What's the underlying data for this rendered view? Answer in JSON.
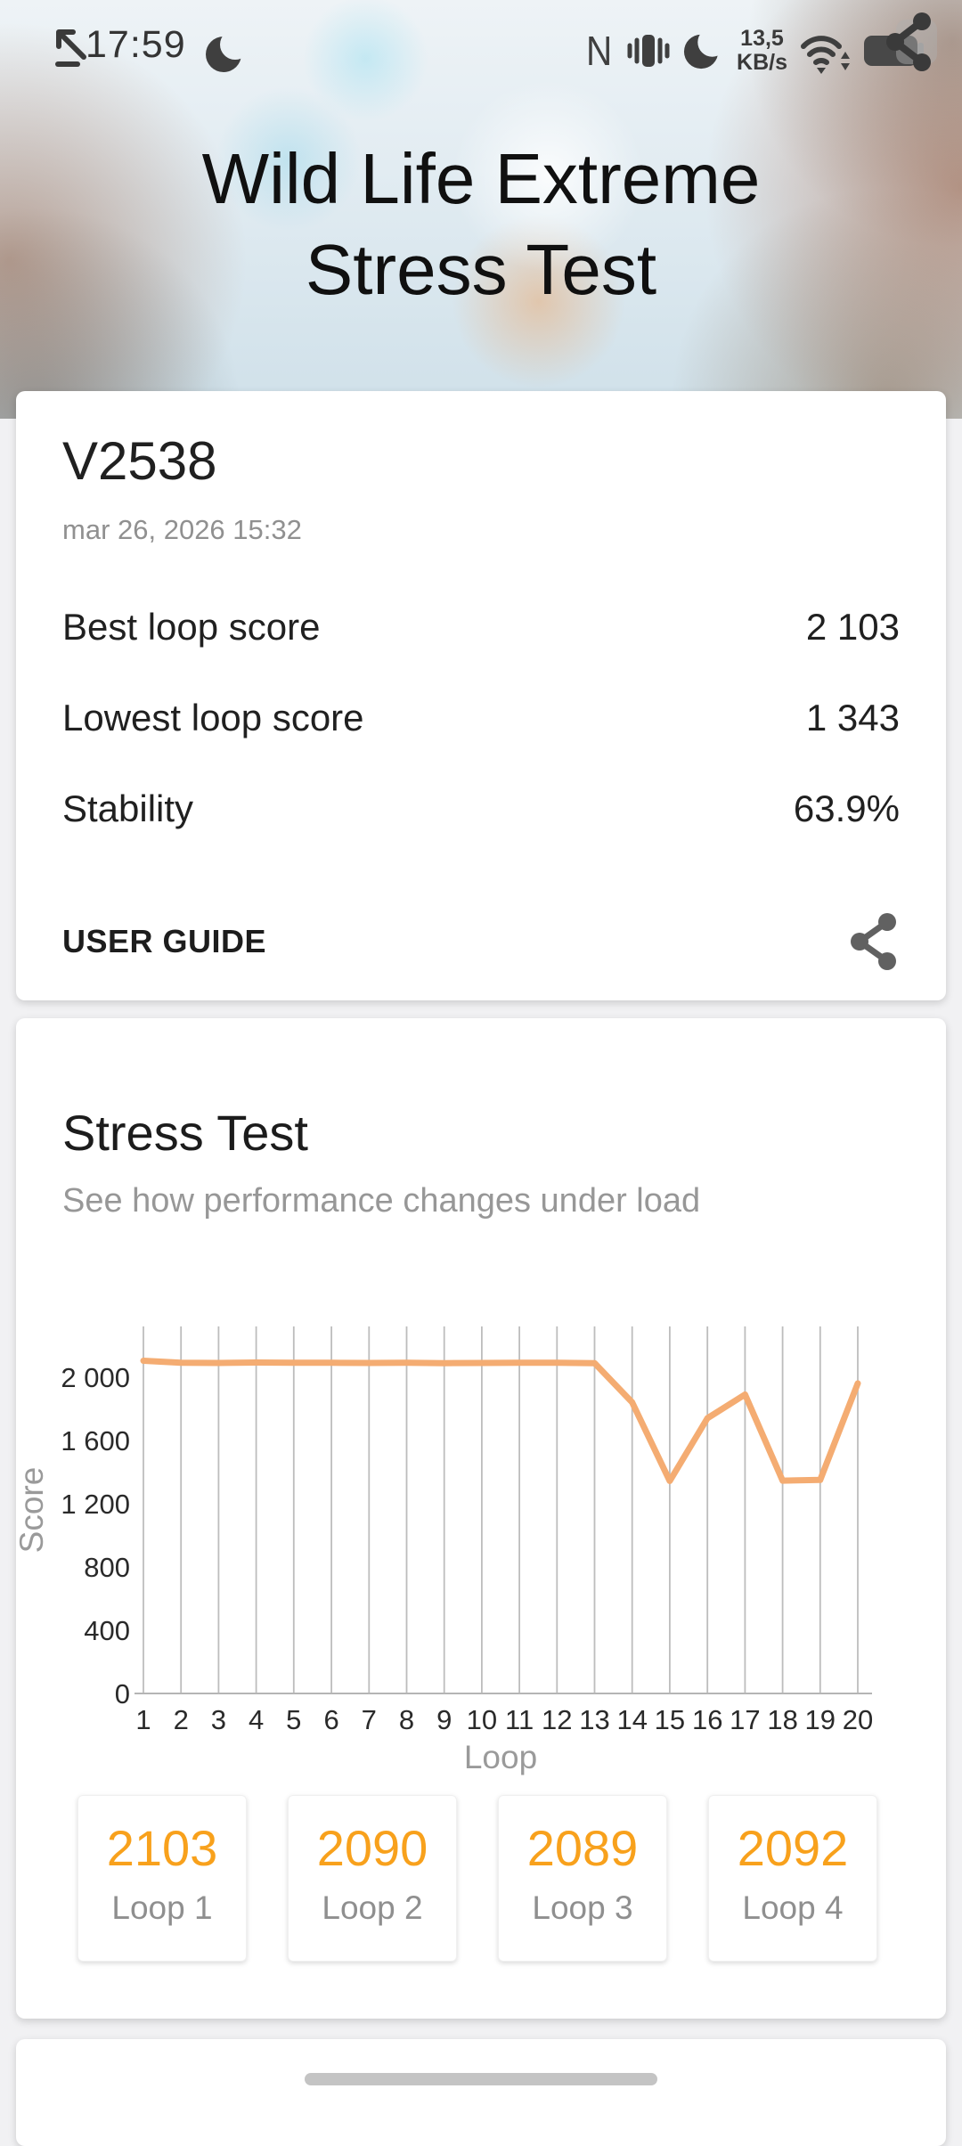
{
  "status_bar": {
    "time": "17:59",
    "data_rate_value": "13,5",
    "data_rate_unit": "KB/s",
    "nfc_label": "N"
  },
  "header": {
    "title_line1": "Wild Life Extreme",
    "title_line2": "Stress Test"
  },
  "result_card": {
    "device_name": "V2538",
    "timestamp": "mar 26, 2026 15:32",
    "rows": [
      {
        "label": "Best loop score",
        "value": "2 103"
      },
      {
        "label": "Lowest loop score",
        "value": "1 343"
      },
      {
        "label": "Stability",
        "value": "63.9%"
      }
    ],
    "user_guide_label": "USER GUIDE"
  },
  "stress_card": {
    "title": "Stress Test",
    "subtitle": "See how performance changes under load",
    "chart_data": {
      "type": "line",
      "title": "",
      "xlabel": "Loop",
      "ylabel": "Score",
      "x": [
        1,
        2,
        3,
        4,
        5,
        6,
        7,
        8,
        9,
        10,
        11,
        12,
        13,
        14,
        15,
        16,
        17,
        18,
        19,
        20
      ],
      "values": [
        2103,
        2090,
        2089,
        2092,
        2091,
        2090,
        2089,
        2090,
        2088,
        2089,
        2090,
        2091,
        2088,
        1840,
        1343,
        1740,
        1890,
        1345,
        1350,
        1960
      ],
      "ylim": [
        0,
        2320
      ],
      "ytick_values": [
        0,
        400,
        800,
        1200,
        1600,
        2000
      ],
      "ytick_labels": [
        "0",
        "400",
        "800",
        "1 200",
        "1 600",
        "2 000"
      ],
      "grid": "vertical",
      "legend": "none",
      "line_color": "#F4AC72"
    },
    "loop_boxes": [
      {
        "score": "2103",
        "label": "Loop 1"
      },
      {
        "score": "2090",
        "label": "Loop 2"
      },
      {
        "score": "2089",
        "label": "Loop 3"
      },
      {
        "score": "2092",
        "label": "Loop 4"
      }
    ]
  },
  "colors": {
    "accent_orange": "#F8A11C",
    "chart_line_orange": "#F4AC72",
    "card_background": "#ffffff",
    "page_background": "#f1f1f3"
  }
}
